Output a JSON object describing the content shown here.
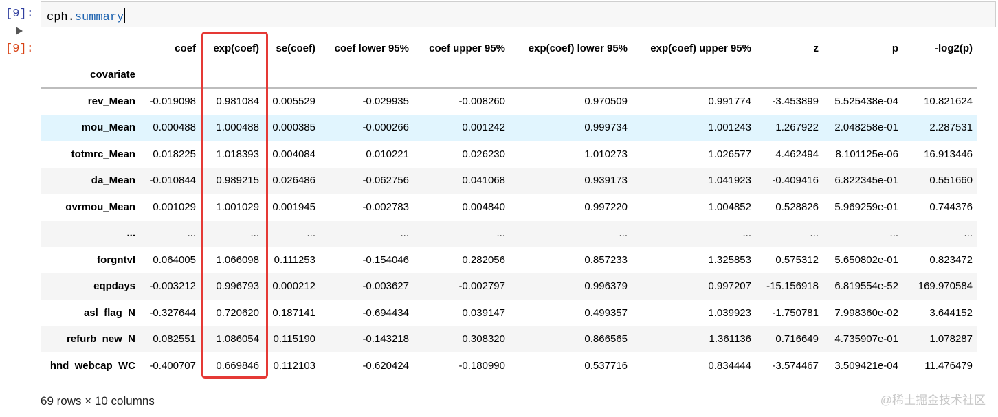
{
  "cell": {
    "in_prompt": "[9]:",
    "out_prompt": "[9]:",
    "code_obj": "cph",
    "code_dot": ".",
    "code_attr": "summary"
  },
  "table": {
    "columns": [
      "coef",
      "exp(coef)",
      "se(coef)",
      "coef lower 95%",
      "coef upper 95%",
      "exp(coef) lower 95%",
      "exp(coef) upper 95%",
      "z",
      "p",
      "-log2(p)"
    ],
    "index_name": "covariate",
    "rows": [
      {
        "label": "rev_Mean",
        "values": [
          "-0.019098",
          "0.981084",
          "0.005529",
          "-0.029935",
          "-0.008260",
          "0.970509",
          "0.991774",
          "-3.453899",
          "5.525438e-04",
          "10.821624"
        ]
      },
      {
        "label": "mou_Mean",
        "values": [
          "0.000488",
          "1.000488",
          "0.000385",
          "-0.000266",
          "0.001242",
          "0.999734",
          "1.001243",
          "1.267922",
          "2.048258e-01",
          "2.287531"
        ]
      },
      {
        "label": "totmrc_Mean",
        "values": [
          "0.018225",
          "1.018393",
          "0.004084",
          "0.010221",
          "0.026230",
          "1.010273",
          "1.026577",
          "4.462494",
          "8.101125e-06",
          "16.913446"
        ]
      },
      {
        "label": "da_Mean",
        "values": [
          "-0.010844",
          "0.989215",
          "0.026486",
          "-0.062756",
          "0.041068",
          "0.939173",
          "1.041923",
          "-0.409416",
          "6.822345e-01",
          "0.551660"
        ]
      },
      {
        "label": "ovrmou_Mean",
        "values": [
          "0.001029",
          "1.001029",
          "0.001945",
          "-0.002783",
          "0.004840",
          "0.997220",
          "1.004852",
          "0.528826",
          "5.969259e-01",
          "0.744376"
        ]
      },
      {
        "label": "...",
        "values": [
          "...",
          "...",
          "...",
          "...",
          "...",
          "...",
          "...",
          "...",
          "...",
          "..."
        ]
      },
      {
        "label": "forgntvl",
        "values": [
          "0.064005",
          "1.066098",
          "0.111253",
          "-0.154046",
          "0.282056",
          "0.857233",
          "1.325853",
          "0.575312",
          "5.650802e-01",
          "0.823472"
        ]
      },
      {
        "label": "eqpdays",
        "values": [
          "-0.003212",
          "0.996793",
          "0.000212",
          "-0.003627",
          "-0.002797",
          "0.996379",
          "0.997207",
          "-15.156918",
          "6.819554e-52",
          "169.970584"
        ]
      },
      {
        "label": "asl_flag_N",
        "values": [
          "-0.327644",
          "0.720620",
          "0.187141",
          "-0.694434",
          "0.039147",
          "0.499357",
          "1.039923",
          "-1.750781",
          "7.998360e-02",
          "3.644152"
        ]
      },
      {
        "label": "refurb_new_N",
        "values": [
          "0.082551",
          "1.086054",
          "0.115190",
          "-0.143218",
          "0.308320",
          "0.866565",
          "1.361136",
          "0.716649",
          "4.735907e-01",
          "1.078287"
        ]
      },
      {
        "label": "hnd_webcap_WC",
        "values": [
          "-0.400707",
          "0.669846",
          "0.112103",
          "-0.620424",
          "-0.180990",
          "0.537716",
          "0.834444",
          "-3.574467",
          "3.509421e-04",
          "11.476479"
        ]
      }
    ],
    "footer": "69 rows × 10 columns"
  },
  "watermark": "@稀土掘金技术社区",
  "colors": {
    "highlight": "#e53935",
    "hover_row": "#e1f5fe",
    "in_prompt": "#303f9f",
    "out_prompt": "#d84315"
  }
}
